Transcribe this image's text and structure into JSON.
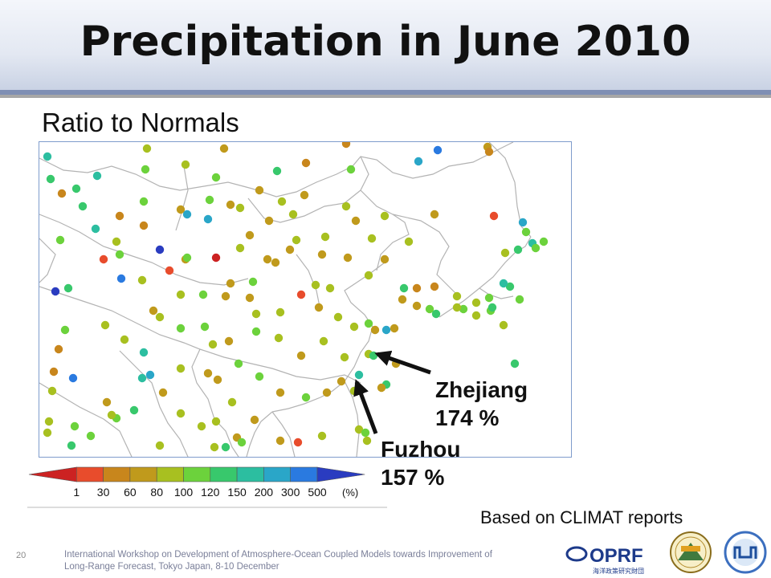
{
  "slide": {
    "title": "Precipitation in June 2010",
    "subtitle": "Ratio to Normals",
    "source_note": "Based on CLIMAT reports",
    "page_number": "20",
    "footer_line1": "International Workshop on Development of Atmosphere-Ocean Coupled Models towards Improvement of",
    "footer_line2": "Long-Range Forecast, Tokyo Japan, 8-10 December"
  },
  "annotations": {
    "zhejiang": {
      "name": "Zhejiang",
      "value": "174 %"
    },
    "fuzhou": {
      "name": "Fuzhou",
      "value": "157 %"
    }
  },
  "legend": {
    "ticks": [
      "1",
      "30",
      "60",
      "80",
      "100",
      "120",
      "150",
      "200",
      "300",
      "500"
    ],
    "unit": "(%)",
    "colors": [
      "#cc2222",
      "#e84c2c",
      "#c8861c",
      "#c09a1c",
      "#a8c020",
      "#6cd23c",
      "#38c86c",
      "#2cbea0",
      "#2aa6c8",
      "#2a7ae0",
      "#2a3cc0"
    ]
  },
  "logos": {
    "oprf": "OPRF",
    "oprf_sub": "海洋政策研究財団"
  },
  "colors": {
    "header_rule": "#7f8fb4",
    "map_border": "#7f9ccc",
    "footer_text": "#7a7f99"
  }
}
